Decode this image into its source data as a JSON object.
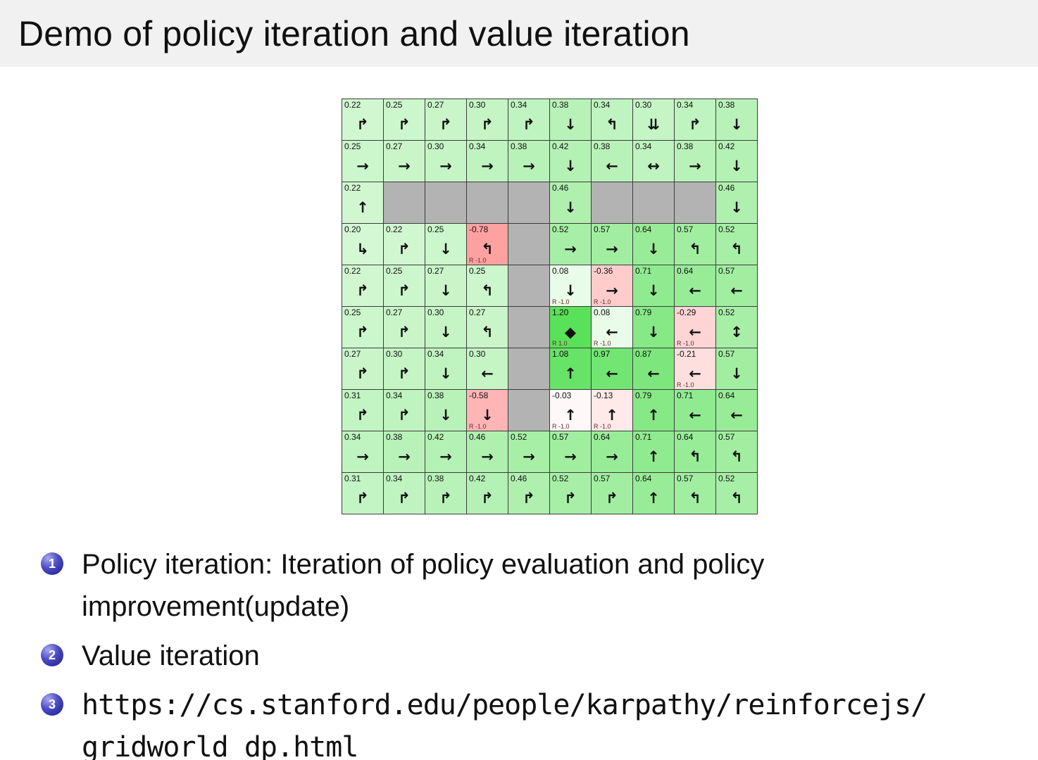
{
  "title": "Demo of policy iteration and value iteration",
  "colors": {
    "title_bar_bg": "#f1f1f1",
    "wall": "#b3b3b3",
    "positive_cell": "#5ae15a",
    "negative_cell": "#ff8c8c",
    "badge_blue": "#1c1c8c",
    "grid_border": "#3c3c3c"
  },
  "gridworld": {
    "rows": [
      [
        {
          "v": "0.22",
          "a": "↱"
        },
        {
          "v": "0.25",
          "a": "↱"
        },
        {
          "v": "0.27",
          "a": "↱"
        },
        {
          "v": "0.30",
          "a": "↱"
        },
        {
          "v": "0.34",
          "a": "↱"
        },
        {
          "v": "0.38",
          "a": "↓"
        },
        {
          "v": "0.34",
          "a": "↰"
        },
        {
          "v": "0.30",
          "a": "⇊"
        },
        {
          "v": "0.34",
          "a": "↱"
        },
        {
          "v": "0.38",
          "a": "↓"
        }
      ],
      [
        {
          "v": "0.25",
          "a": "→"
        },
        {
          "v": "0.27",
          "a": "→"
        },
        {
          "v": "0.30",
          "a": "→"
        },
        {
          "v": "0.34",
          "a": "→"
        },
        {
          "v": "0.38",
          "a": "→"
        },
        {
          "v": "0.42",
          "a": "↓"
        },
        {
          "v": "0.38",
          "a": "←"
        },
        {
          "v": "0.34",
          "a": "↔"
        },
        {
          "v": "0.38",
          "a": "→"
        },
        {
          "v": "0.42",
          "a": "↓"
        }
      ],
      [
        {
          "v": "0.22",
          "a": "↑"
        },
        {
          "wall": true
        },
        {
          "wall": true
        },
        {
          "wall": true
        },
        {
          "wall": true
        },
        {
          "v": "0.46",
          "a": "↓"
        },
        {
          "wall": true
        },
        {
          "wall": true
        },
        {
          "wall": true
        },
        {
          "v": "0.46",
          "a": "↓"
        }
      ],
      [
        {
          "v": "0.20",
          "a": "↳"
        },
        {
          "v": "0.22",
          "a": "↱"
        },
        {
          "v": "0.25",
          "a": "↓"
        },
        {
          "v": "-0.78",
          "a": "↰",
          "r": "R -1.0"
        },
        {
          "wall": true
        },
        {
          "v": "0.52",
          "a": "→"
        },
        {
          "v": "0.57",
          "a": "→"
        },
        {
          "v": "0.64",
          "a": "↓"
        },
        {
          "v": "0.57",
          "a": "↰"
        },
        {
          "v": "0.52",
          "a": "↰"
        }
      ],
      [
        {
          "v": "0.22",
          "a": "↱"
        },
        {
          "v": "0.25",
          "a": "↱"
        },
        {
          "v": "0.27",
          "a": "↓"
        },
        {
          "v": "0.25",
          "a": "↰"
        },
        {
          "wall": true
        },
        {
          "v": "0.08",
          "a": "↓",
          "r": "R -1.0"
        },
        {
          "v": "-0.36",
          "a": "→",
          "r": "R -1.0"
        },
        {
          "v": "0.71",
          "a": "↓"
        },
        {
          "v": "0.64",
          "a": "←"
        },
        {
          "v": "0.57",
          "a": "←"
        }
      ],
      [
        {
          "v": "0.25",
          "a": "↱"
        },
        {
          "v": "0.27",
          "a": "↱"
        },
        {
          "v": "0.30",
          "a": "↓"
        },
        {
          "v": "0.27",
          "a": "↰"
        },
        {
          "wall": true
        },
        {
          "v": "1.20",
          "a": "◆",
          "r": "R 1.0"
        },
        {
          "v": "0.08",
          "a": "←",
          "r": "R -1.0"
        },
        {
          "v": "0.79",
          "a": "↓"
        },
        {
          "v": "-0.29",
          "a": "←",
          "r": "R -1.0"
        },
        {
          "v": "0.52",
          "a": "↕"
        }
      ],
      [
        {
          "v": "0.27",
          "a": "↱"
        },
        {
          "v": "0.30",
          "a": "↱"
        },
        {
          "v": "0.34",
          "a": "↓"
        },
        {
          "v": "0.30",
          "a": "←"
        },
        {
          "wall": true
        },
        {
          "v": "1.08",
          "a": "↑"
        },
        {
          "v": "0.97",
          "a": "←"
        },
        {
          "v": "0.87",
          "a": "←"
        },
        {
          "v": "-0.21",
          "a": "←",
          "r": "R -1.0"
        },
        {
          "v": "0.57",
          "a": "↓"
        }
      ],
      [
        {
          "v": "0.31",
          "a": "↱"
        },
        {
          "v": "0.34",
          "a": "↱"
        },
        {
          "v": "0.38",
          "a": "↓"
        },
        {
          "v": "-0.58",
          "a": "↓",
          "r": "R -1.0"
        },
        {
          "wall": true
        },
        {
          "v": "-0.03",
          "a": "↑",
          "r": "R -1.0"
        },
        {
          "v": "-0.13",
          "a": "↑",
          "r": "R -1.0"
        },
        {
          "v": "0.79",
          "a": "↑"
        },
        {
          "v": "0.71",
          "a": "←"
        },
        {
          "v": "0.64",
          "a": "←"
        }
      ],
      [
        {
          "v": "0.34",
          "a": "→"
        },
        {
          "v": "0.38",
          "a": "→"
        },
        {
          "v": "0.42",
          "a": "→"
        },
        {
          "v": "0.46",
          "a": "→"
        },
        {
          "v": "0.52",
          "a": "→"
        },
        {
          "v": "0.57",
          "a": "→"
        },
        {
          "v": "0.64",
          "a": "→"
        },
        {
          "v": "0.71",
          "a": "↑"
        },
        {
          "v": "0.64",
          "a": "↰"
        },
        {
          "v": "0.57",
          "a": "↰"
        }
      ],
      [
        {
          "v": "0.31",
          "a": "↱"
        },
        {
          "v": "0.34",
          "a": "↱"
        },
        {
          "v": "0.38",
          "a": "↱"
        },
        {
          "v": "0.42",
          "a": "↱"
        },
        {
          "v": "0.46",
          "a": "↱"
        },
        {
          "v": "0.52",
          "a": "↱"
        },
        {
          "v": "0.57",
          "a": "↱"
        },
        {
          "v": "0.64",
          "a": "↑"
        },
        {
          "v": "0.57",
          "a": "↰"
        },
        {
          "v": "0.52",
          "a": "↰"
        }
      ]
    ]
  },
  "bullets": [
    {
      "num": "1",
      "mono": false,
      "lines": [
        "Policy iteration: Iteration of policy evaluation and policy",
        "improvement(update)"
      ]
    },
    {
      "num": "2",
      "mono": false,
      "lines": [
        "Value iteration"
      ]
    },
    {
      "num": "3",
      "mono": true,
      "lines": [
        "https://cs.stanford.edu/people/karpathy/reinforcejs/",
        "gridworld_dp.html"
      ]
    }
  ]
}
